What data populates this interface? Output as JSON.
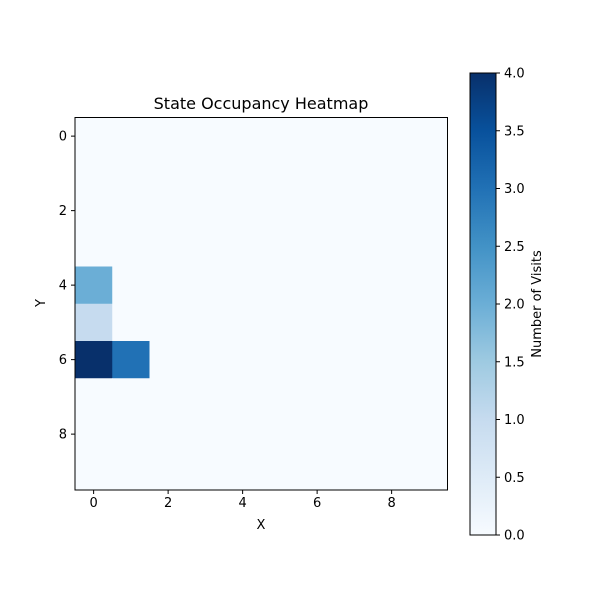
{
  "chart_data": {
    "type": "heatmap",
    "title": "State Occupancy Heatmap",
    "xlabel": "X",
    "ylabel": "Y",
    "colorbar_label": "Number of Visits",
    "colormap": "Blues",
    "rows": 10,
    "cols": 10,
    "x_ticks": [
      "0",
      "2",
      "4",
      "6",
      "8"
    ],
    "y_ticks": [
      "0",
      "2",
      "4",
      "6",
      "8"
    ],
    "colorbar_ticks": [
      "0.0",
      "0.5",
      "1.0",
      "1.5",
      "2.0",
      "2.5",
      "3.0",
      "3.5",
      "4.0"
    ],
    "vmin": 0,
    "vmax": 4,
    "y_axis_inverted": true,
    "values": [
      [
        0,
        0,
        0,
        0,
        0,
        0,
        0,
        0,
        0,
        0
      ],
      [
        0,
        0,
        0,
        0,
        0,
        0,
        0,
        0,
        0,
        0
      ],
      [
        0,
        0,
        0,
        0,
        0,
        0,
        0,
        0,
        0,
        0
      ],
      [
        0,
        0,
        0,
        0,
        0,
        0,
        0,
        0,
        0,
        0
      ],
      [
        2,
        0,
        0,
        0,
        0,
        0,
        0,
        0,
        0,
        0
      ],
      [
        1,
        0,
        0,
        0,
        0,
        0,
        0,
        0,
        0,
        0
      ],
      [
        4,
        3,
        0,
        0,
        0,
        0,
        0,
        0,
        0,
        0
      ],
      [
        0,
        0,
        0,
        0,
        0,
        0,
        0,
        0,
        0,
        0
      ],
      [
        0,
        0,
        0,
        0,
        0,
        0,
        0,
        0,
        0,
        0
      ],
      [
        0,
        0,
        0,
        0,
        0,
        0,
        0,
        0,
        0,
        0
      ]
    ]
  }
}
